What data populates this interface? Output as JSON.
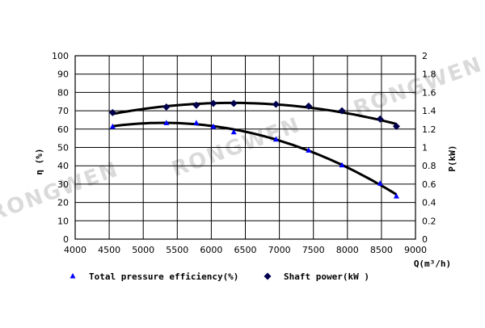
{
  "chart_data": {
    "type": "scatter",
    "x_label": "Q(m³/h)",
    "y_left_label": "η (%)",
    "y_right_label": "P(kW)",
    "x_range": [
      4000,
      9000
    ],
    "x_ticks": [
      "4000",
      "4500",
      "5000",
      "5500",
      "6000",
      "6500",
      "7000",
      "7500",
      "8000",
      "8500",
      "9000"
    ],
    "y_left_range": [
      0,
      100
    ],
    "y_left_ticks": [
      "0",
      "10",
      "20",
      "30",
      "40",
      "50",
      "60",
      "70",
      "80",
      "90",
      "100"
    ],
    "y_right_range": [
      0,
      2
    ],
    "y_right_ticks": [
      "0",
      "0.2",
      "0.4",
      "0.6",
      "0.8",
      "1",
      "1.2",
      "1.4",
      "1.6",
      "1.8",
      "2"
    ],
    "grid": true,
    "legend_position": "bottom",
    "colors": {
      "efficiency_marker": "#0000ff",
      "power_marker": "#00004d",
      "curve": "#000000"
    },
    "series": [
      {
        "name": "Total pressure efficiency(%)",
        "axis": "left",
        "marker": "triangle",
        "x": [
          4550,
          5340,
          5780,
          6030,
          6330,
          6950,
          7430,
          7920,
          8480,
          8720
        ],
        "y": [
          61.5,
          63.5,
          63.5,
          61.5,
          58.5,
          54.5,
          48.5,
          40.5,
          30.5,
          23.5
        ]
      },
      {
        "name": "Shaft power(kW )",
        "axis": "right",
        "marker": "diamond",
        "x": [
          4550,
          5340,
          5780,
          6030,
          6330,
          6950,
          7430,
          7920,
          8480,
          8720
        ],
        "y": [
          1.38,
          1.44,
          1.46,
          1.48,
          1.48,
          1.47,
          1.45,
          1.4,
          1.31,
          1.23
        ]
      }
    ]
  },
  "watermark": "RONGWEN"
}
